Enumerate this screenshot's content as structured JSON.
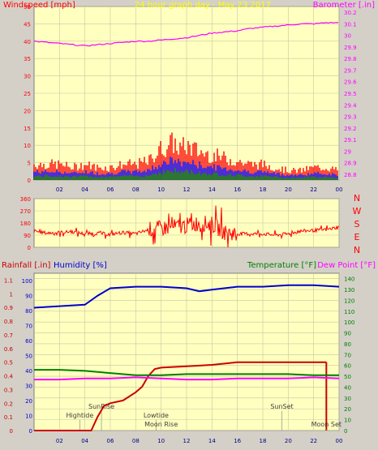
{
  "colors": {
    "background": "#d4d0c8",
    "plot_bg": "#ffffc0",
    "grid": "#c8c8a0",
    "wind": "#ff0000",
    "gust": "#ff0000",
    "avg_wind": "#0000ff",
    "calm": "#008000",
    "barometer": "#ff00ff",
    "direction": "#ff0000",
    "rain": "#cc0000",
    "humidity": "#0000cc",
    "temperature": "#008000",
    "dewpoint": "#ff00ff",
    "title": "#ffff00"
  },
  "panels": {
    "wind": {
      "title": "24 hour graph day - May 23 2017",
      "left_label": "Windspeed [mph]",
      "right_label": "Barometer [.in]",
      "left_ticks": [
        "50",
        "45",
        "40",
        "35",
        "30",
        "25",
        "20",
        "15",
        "10",
        "5",
        "0"
      ],
      "right_ticks": [
        "30.2",
        "30.1",
        "30",
        "29.9",
        "29.8",
        "29.7",
        "29.6",
        "29.5",
        "29.4",
        "29.3",
        "29.2",
        "29.1",
        "29",
        "28.9",
        "28.8"
      ],
      "x_ticks": [
        "02",
        "04",
        "06",
        "08",
        "10",
        "12",
        "14",
        "16",
        "18",
        "20",
        "22",
        "00"
      ]
    },
    "direction": {
      "left_ticks": [
        "360",
        "270",
        "180",
        "90",
        "0"
      ],
      "right_labels": [
        "N",
        "W",
        "S",
        "E",
        "N"
      ]
    },
    "climate": {
      "rain_label": "Rainfall [.in]",
      "humidity_label": "Humidity [%]",
      "temp_label": "Temperature [°F]",
      "dew_label": "Dew Point [°F]",
      "rain_ticks": [
        "1.1",
        "1",
        "0.9",
        "0.8",
        "0.7",
        "0.6",
        "0.5",
        "0.4",
        "0.3",
        "0.2",
        "0.1",
        "0"
      ],
      "humidity_ticks": [
        "100",
        "90",
        "80",
        "70",
        "60",
        "50",
        "40",
        "30",
        "20",
        "10",
        "0"
      ],
      "temp_ticks": [
        "140",
        "130",
        "120",
        "110",
        "100",
        "90",
        "80",
        "70",
        "60",
        "50",
        "40",
        "30",
        "20",
        "10",
        "0"
      ],
      "x_ticks": [
        "02",
        "04",
        "06",
        "08",
        "10",
        "12",
        "14",
        "16",
        "18",
        "20",
        "22",
        "00"
      ],
      "annotations": [
        "Hightide",
        "SunRise",
        "Lowtide",
        "Moon Rise",
        "SunSet",
        "Moon Set"
      ]
    }
  },
  "chart_data": [
    {
      "type": "line",
      "title": "24 hour graph day - May 23 2017",
      "xlabel": "",
      "x_unit": "hour",
      "xlim": [
        0,
        24
      ],
      "x_ticks": [
        "02",
        "04",
        "06",
        "08",
        "10",
        "12",
        "14",
        "16",
        "18",
        "20",
        "22",
        "00"
      ],
      "series": [
        {
          "name": "Windspeed [mph]",
          "axis": "left",
          "ylim": [
            0,
            50
          ],
          "x": [
            0,
            1,
            2,
            3,
            4,
            5,
            6,
            7,
            8,
            9,
            9.5,
            10,
            10.5,
            11,
            11.5,
            12,
            12.5,
            13,
            14,
            15,
            16,
            17,
            18,
            19,
            20,
            21,
            22,
            23,
            24
          ],
          "y": [
            5,
            5,
            5,
            4,
            5,
            4,
            4,
            5,
            5,
            6,
            8,
            10,
            11,
            12,
            10,
            11,
            10,
            9,
            8,
            7,
            6,
            5,
            5,
            4,
            3,
            3,
            4,
            4,
            3
          ]
        },
        {
          "name": "Barometer [.in]",
          "axis": "right",
          "ylim": [
            28.75,
            30.25
          ],
          "x": [
            0,
            1,
            2,
            3,
            4,
            5,
            6,
            7,
            8,
            9,
            10,
            11,
            12,
            13,
            14,
            15,
            16,
            17,
            18,
            19,
            20,
            21,
            22,
            23,
            24
          ],
          "y": [
            29.95,
            29.94,
            29.93,
            29.92,
            29.91,
            29.92,
            29.93,
            29.94,
            29.95,
            29.95,
            29.96,
            29.97,
            29.98,
            30.0,
            30.02,
            30.03,
            30.04,
            30.06,
            30.07,
            30.08,
            30.09,
            30.1,
            30.1,
            30.11,
            30.11
          ]
        }
      ]
    },
    {
      "type": "line",
      "title": "",
      "x_unit": "hour",
      "xlim": [
        0,
        24
      ],
      "ylim": [
        0,
        360
      ],
      "ylabel": "",
      "series": [
        {
          "name": "",
          "x": [
            0,
            1,
            2,
            3,
            4,
            5,
            6,
            7,
            8,
            9,
            10,
            11,
            12,
            13,
            14,
            15,
            16,
            17,
            18,
            19,
            20,
            21,
            22,
            23,
            24
          ],
          "y": [
            120,
            105,
            110,
            115,
            100,
            105,
            95,
            110,
            100,
            130,
            140,
            150,
            160,
            180,
            170,
            110,
            100,
            100,
            100,
            90,
            100,
            120,
            125,
            130,
            150
          ]
        }
      ]
    },
    {
      "type": "line",
      "title": "",
      "x_unit": "hour",
      "xlim": [
        0,
        24
      ],
      "series": [
        {
          "name": "Rainfall [.in]",
          "axis": "rain",
          "ylim": [
            0,
            1.15
          ],
          "x": [
            0,
            4.5,
            5,
            5.5,
            6,
            7,
            8,
            8.5,
            9,
            9.5,
            10,
            12,
            14,
            16,
            18,
            20,
            22,
            23
          ],
          "y": [
            0,
            0,
            0.1,
            0.18,
            0.2,
            0.22,
            0.28,
            0.32,
            0.4,
            0.45,
            0.46,
            0.47,
            0.48,
            0.5,
            0.5,
            0.5,
            0.5,
            0.5
          ]
        },
        {
          "name": "Humidity [%]",
          "axis": "humidity",
          "ylim": [
            0,
            105
          ],
          "x": [
            0,
            2,
            4,
            5,
            6,
            8,
            10,
            12,
            13,
            14,
            16,
            18,
            20,
            22,
            24
          ],
          "y": [
            82,
            83,
            84,
            90,
            95,
            96,
            96,
            95,
            93,
            94,
            96,
            96,
            97,
            97,
            96
          ]
        },
        {
          "name": "Temperature [°F]",
          "axis": "temp",
          "ylim": [
            0,
            145
          ],
          "x": [
            0,
            2,
            4,
            6,
            8,
            10,
            12,
            14,
            16,
            18,
            20,
            22,
            24
          ],
          "y": [
            56,
            56,
            55,
            53,
            51,
            51,
            52,
            52,
            52,
            52,
            52,
            51,
            51
          ]
        },
        {
          "name": "Dew Point [°F]",
          "axis": "temp",
          "ylim": [
            0,
            145
          ],
          "x": [
            0,
            2,
            4,
            6,
            8,
            10,
            12,
            14,
            16,
            18,
            20,
            22,
            24
          ],
          "y": [
            47,
            47,
            48,
            48,
            49,
            48,
            47,
            47,
            48,
            48,
            48,
            49,
            48
          ]
        }
      ]
    }
  ]
}
